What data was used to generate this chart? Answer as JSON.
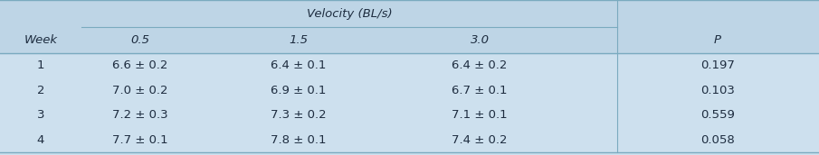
{
  "header_top": "Velocity (BL/s)",
  "col_headers": [
    "Week",
    "0.5",
    "1.5",
    "3.0",
    "P"
  ],
  "rows": [
    [
      "1",
      "6.6 ± 0.2",
      "6.4 ± 0.1",
      "6.4 ± 0.2",
      "0.197"
    ],
    [
      "2",
      "7.0 ± 0.2",
      "6.9 ± 0.1",
      "6.7 ± 0.1",
      "0.103"
    ],
    [
      "3",
      "7.2 ± 0.3",
      "7.3 ± 0.2",
      "7.1 ± 0.1",
      "0.559"
    ],
    [
      "4",
      "7.7 ± 0.1",
      "7.8 ± 0.1",
      "7.4 ± 0.2",
      "0.058"
    ]
  ],
  "bg_color": "#cde0ee",
  "header_bg": "#bed5e6",
  "line_color": "#7aaabf",
  "text_color": "#1e2d40",
  "fig_width": 9.05,
  "fig_height": 1.72,
  "dpi": 100
}
